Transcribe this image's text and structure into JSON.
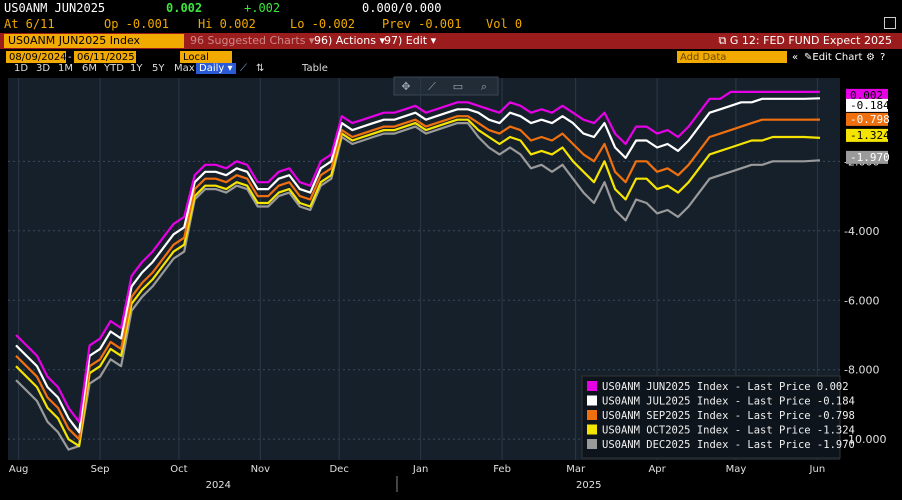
{
  "header": {
    "ticker": "US0ANM JUN2025",
    "last": "0.002",
    "change": "+.002",
    "bidask": "0.000/0.000",
    "at": "At 6/11",
    "open": "Op -0.001",
    "high": "Hi 0.002",
    "low": "Lo -0.002",
    "prev": "Prev -0.001",
    "vol": "Vol 0"
  },
  "toolbar": {
    "security": "US0ANM JUN2025 Index",
    "suggested": "96 Suggested Charts ▾",
    "actions": "96) Actions ▾",
    "edit": "97) Edit ▾",
    "title": "G 12: FED FUND Expect 2025"
  },
  "range_bar": {
    "start": "08/09/2024",
    "end": "06/11/2025",
    "currency": "Local CCY",
    "periods": [
      "1D",
      "3D",
      "1M",
      "6M",
      "YTD",
      "1Y",
      "5Y",
      "Max"
    ],
    "frequency": "Daily ▾",
    "table": "Table",
    "add_data": "Add Data",
    "edit_chart": "Edit Chart"
  },
  "colors": {
    "jun": "#e600e6",
    "jul": "#ffffff",
    "sep": "#f07010",
    "oct": "#f5e400",
    "dec": "#9a9a9a",
    "accent": "#f2a900",
    "toolbar": "#9b1c1c",
    "background": "#000000",
    "plot_bg": "#16202b"
  },
  "chart_data": {
    "type": "line",
    "x": [
      "2024-08-09",
      "2024-08-13",
      "2024-08-17",
      "2024-08-21",
      "2024-08-25",
      "2024-08-29",
      "2024-09-02",
      "2024-09-06",
      "2024-09-10",
      "2024-09-14",
      "2024-09-18",
      "2024-09-22",
      "2024-09-26",
      "2024-09-30",
      "2024-10-04",
      "2024-10-08",
      "2024-10-12",
      "2024-10-16",
      "2024-10-20",
      "2024-10-24",
      "2024-10-28",
      "2024-11-01",
      "2024-11-05",
      "2024-11-09",
      "2024-11-13",
      "2024-11-17",
      "2024-11-21",
      "2024-11-25",
      "2024-11-29",
      "2024-12-03",
      "2024-12-07",
      "2024-12-11",
      "2024-12-15",
      "2024-12-19",
      "2024-12-23",
      "2024-12-27",
      "2024-12-31",
      "2025-01-04",
      "2025-01-08",
      "2025-01-12",
      "2025-01-16",
      "2025-01-20",
      "2025-01-24",
      "2025-01-28",
      "2025-02-01",
      "2025-02-05",
      "2025-02-09",
      "2025-02-13",
      "2025-02-17",
      "2025-02-21",
      "2025-02-25",
      "2025-03-01",
      "2025-03-05",
      "2025-03-09",
      "2025-03-13",
      "2025-03-17",
      "2025-03-21",
      "2025-03-25",
      "2025-03-29",
      "2025-04-02",
      "2025-04-06",
      "2025-04-10",
      "2025-04-14",
      "2025-04-18",
      "2025-04-22",
      "2025-04-26",
      "2025-04-30",
      "2025-05-04",
      "2025-05-08",
      "2025-05-12",
      "2025-05-16",
      "2025-05-20",
      "2025-05-24",
      "2025-05-28",
      "2025-06-01",
      "2025-06-05",
      "2025-06-11"
    ],
    "series": [
      {
        "name": "US0ANM JUN2025 Index - Last Price",
        "last": "0.002",
        "color": "#e600e6",
        "values": [
          -7.0,
          -7.3,
          -7.6,
          -8.2,
          -8.5,
          -9.1,
          -9.5,
          -7.3,
          -7.1,
          -6.6,
          -6.8,
          -5.3,
          -4.9,
          -4.6,
          -4.2,
          -3.8,
          -3.6,
          -2.4,
          -2.1,
          -2.1,
          -2.2,
          -2.0,
          -2.1,
          -2.6,
          -2.6,
          -2.3,
          -2.2,
          -2.6,
          -2.7,
          -2.0,
          -1.8,
          -0.7,
          -0.9,
          -0.8,
          -0.7,
          -0.6,
          -0.6,
          -0.5,
          -0.4,
          -0.6,
          -0.5,
          -0.4,
          -0.3,
          -0.3,
          -0.4,
          -0.5,
          -0.6,
          -0.3,
          -0.4,
          -0.6,
          -0.5,
          -0.6,
          -0.4,
          -0.6,
          -0.8,
          -0.9,
          -0.6,
          -1.2,
          -1.5,
          -1.0,
          -1.0,
          -1.2,
          -1.1,
          -1.3,
          -1.0,
          -0.6,
          -0.2,
          -0.2,
          0.0,
          0.0,
          0.0,
          0.0,
          0.0,
          0.0,
          0.0,
          0.0,
          0.002
        ]
      },
      {
        "name": "US0ANM JUL2025 Index - Last Price",
        "last": "-0.184",
        "color": "#ffffff",
        "values": [
          -7.3,
          -7.6,
          -7.9,
          -8.5,
          -8.8,
          -9.4,
          -9.8,
          -7.6,
          -7.4,
          -6.9,
          -7.1,
          -5.6,
          -5.2,
          -4.9,
          -4.5,
          -4.1,
          -3.9,
          -2.6,
          -2.3,
          -2.3,
          -2.4,
          -2.2,
          -2.3,
          -2.8,
          -2.8,
          -2.5,
          -2.4,
          -2.8,
          -2.9,
          -2.2,
          -2.0,
          -0.9,
          -1.1,
          -1.0,
          -0.9,
          -0.8,
          -0.8,
          -0.7,
          -0.6,
          -0.8,
          -0.7,
          -0.6,
          -0.5,
          -0.5,
          -0.6,
          -0.8,
          -0.9,
          -0.6,
          -0.7,
          -0.9,
          -0.8,
          -0.9,
          -0.7,
          -0.9,
          -1.2,
          -1.3,
          -0.9,
          -1.6,
          -1.9,
          -1.4,
          -1.4,
          -1.6,
          -1.5,
          -1.7,
          -1.4,
          -1.0,
          -0.6,
          -0.5,
          -0.4,
          -0.3,
          -0.3,
          -0.2,
          -0.2,
          -0.2,
          -0.2,
          -0.2,
          -0.184
        ]
      },
      {
        "name": "US0ANM SEP2025 Index - Last Price",
        "last": "-0.798",
        "color": "#f07010",
        "values": [
          -7.6,
          -7.9,
          -8.2,
          -8.8,
          -9.1,
          -9.7,
          -10.0,
          -7.9,
          -7.7,
          -7.2,
          -7.4,
          -5.9,
          -5.5,
          -5.2,
          -4.8,
          -4.4,
          -4.2,
          -2.8,
          -2.5,
          -2.5,
          -2.6,
          -2.4,
          -2.5,
          -3.0,
          -3.0,
          -2.7,
          -2.6,
          -3.0,
          -3.1,
          -2.4,
          -2.2,
          -1.1,
          -1.3,
          -1.2,
          -1.1,
          -1.0,
          -1.0,
          -0.9,
          -0.8,
          -1.0,
          -0.9,
          -0.8,
          -0.7,
          -0.7,
          -0.9,
          -1.1,
          -1.2,
          -1.0,
          -1.1,
          -1.4,
          -1.3,
          -1.4,
          -1.2,
          -1.5,
          -1.8,
          -2.0,
          -1.5,
          -2.3,
          -2.6,
          -2.0,
          -2.0,
          -2.3,
          -2.2,
          -2.4,
          -2.1,
          -1.7,
          -1.3,
          -1.2,
          -1.1,
          -1.0,
          -0.9,
          -0.8,
          -0.8,
          -0.8,
          -0.8,
          -0.8,
          -0.798
        ]
      },
      {
        "name": "US0ANM OCT2025 Index - Last Price",
        "last": "-1.324",
        "color": "#f5e400",
        "values": [
          -7.9,
          -8.2,
          -8.5,
          -9.1,
          -9.4,
          -10.0,
          -10.2,
          -8.1,
          -7.9,
          -7.4,
          -7.6,
          -6.1,
          -5.7,
          -5.4,
          -5.0,
          -4.6,
          -4.4,
          -3.0,
          -2.7,
          -2.7,
          -2.8,
          -2.6,
          -2.7,
          -3.2,
          -3.2,
          -2.9,
          -2.8,
          -3.2,
          -3.3,
          -2.6,
          -2.4,
          -1.2,
          -1.4,
          -1.3,
          -1.2,
          -1.1,
          -1.1,
          -1.0,
          -0.9,
          -1.1,
          -1.0,
          -0.9,
          -0.8,
          -0.8,
          -1.1,
          -1.3,
          -1.5,
          -1.3,
          -1.4,
          -1.8,
          -1.7,
          -1.8,
          -1.6,
          -2.0,
          -2.3,
          -2.6,
          -2.0,
          -2.8,
          -3.1,
          -2.5,
          -2.5,
          -2.8,
          -2.7,
          -2.9,
          -2.6,
          -2.2,
          -1.8,
          -1.7,
          -1.6,
          -1.5,
          -1.4,
          -1.4,
          -1.3,
          -1.3,
          -1.3,
          -1.3,
          -1.324
        ]
      },
      {
        "name": "US0ANM DEC2025 Index - Last Price",
        "last": "-1.970",
        "color": "#9a9a9a",
        "values": [
          -8.3,
          -8.6,
          -8.9,
          -9.5,
          -9.8,
          -10.3,
          -10.2,
          -8.4,
          -8.2,
          -7.7,
          -7.9,
          -6.3,
          -5.9,
          -5.6,
          -5.2,
          -4.8,
          -4.6,
          -3.1,
          -2.8,
          -2.8,
          -2.9,
          -2.7,
          -2.8,
          -3.3,
          -3.3,
          -3.0,
          -2.9,
          -3.3,
          -3.4,
          -2.7,
          -2.5,
          -1.3,
          -1.5,
          -1.4,
          -1.3,
          -1.2,
          -1.2,
          -1.1,
          -1.0,
          -1.2,
          -1.1,
          -1.0,
          -0.9,
          -0.9,
          -1.3,
          -1.6,
          -1.8,
          -1.6,
          -1.8,
          -2.2,
          -2.1,
          -2.3,
          -2.1,
          -2.5,
          -2.9,
          -3.2,
          -2.6,
          -3.4,
          -3.7,
          -3.1,
          -3.2,
          -3.5,
          -3.4,
          -3.6,
          -3.3,
          -2.9,
          -2.5,
          -2.4,
          -2.3,
          -2.2,
          -2.1,
          -2.1,
          -2.0,
          -2.0,
          -2.0,
          -2.0,
          -1.97
        ]
      }
    ],
    "ylim": [
      -10.6,
      0.4
    ],
    "y_ticks": [
      -2.0,
      -4.0,
      -6.0,
      -8.0,
      -10.0
    ],
    "y_tick_labels": [
      "-2.000",
      "-4.000",
      "-6.000",
      "-8.000",
      "-10.000"
    ],
    "x_month_labels": [
      "Aug",
      "Sep",
      "Oct",
      "Nov",
      "Dec",
      "Jan",
      "Feb",
      "Mar",
      "Apr",
      "May",
      "Jun"
    ],
    "x_month_dates": [
      "2024-08-10",
      "2024-09-10",
      "2024-10-10",
      "2024-11-10",
      "2024-12-10",
      "2025-01-10",
      "2025-02-10",
      "2025-03-10",
      "2025-04-10",
      "2025-05-10",
      "2025-06-10"
    ],
    "year_labels": [
      "2024",
      "2025"
    ],
    "legend_position": "bottom-right",
    "grid": true,
    "price_tags": [
      "0.002",
      "-0.184",
      "-0.798",
      "-1.324",
      "-1.970"
    ]
  }
}
